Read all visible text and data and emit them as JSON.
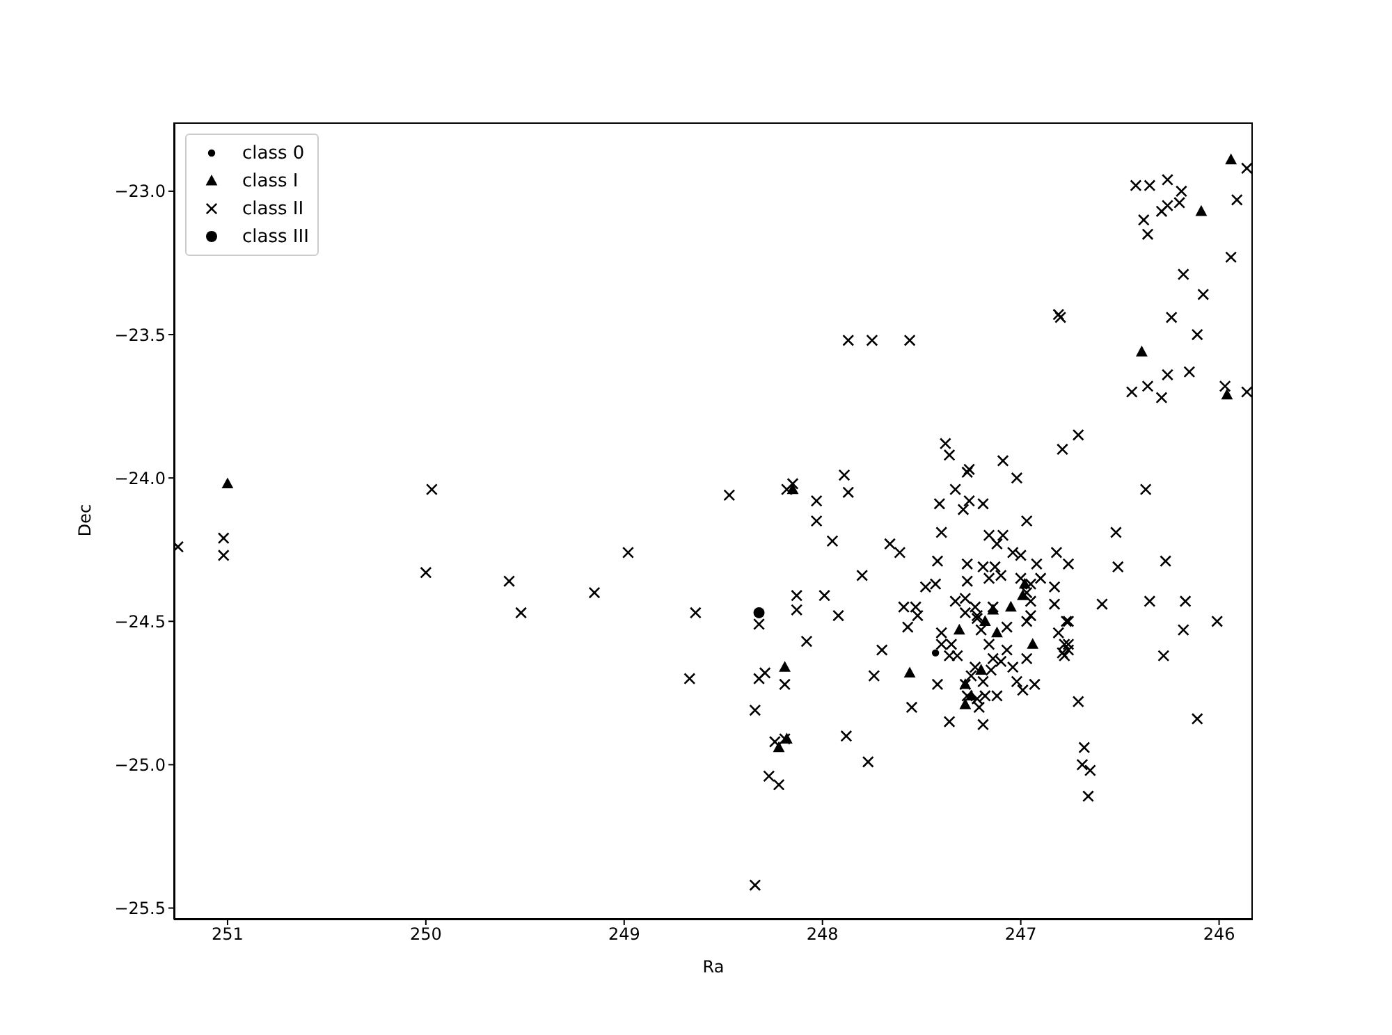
{
  "chart_data": {
    "type": "scatter",
    "xlabel": "Ra",
    "ylabel": "Dec",
    "legend": "top left",
    "grid": false,
    "xlim": [
      251.27,
      245.83
    ],
    "xticks": [
      251,
      250,
      249,
      248,
      247,
      246
    ],
    "ylim": [
      -25.54,
      -22.76
    ],
    "yticks": [
      {
        "value": -25.5,
        "label": "−25.5"
      },
      {
        "value": -25,
        "label": "−25.0"
      },
      {
        "value": -24.5,
        "label": "−24.5"
      },
      {
        "value": -24,
        "label": "−24.0"
      },
      {
        "value": -23.5,
        "label": "−23.5"
      },
      {
        "value": -23,
        "label": "−23.0"
      }
    ],
    "series": [
      {
        "name": "class 0",
        "color": "#000000",
        "marker": "circle",
        "x": [
          247.43
        ],
        "values": [
          -24.61
        ]
      },
      {
        "name": "class I",
        "color": "#000000",
        "marker": "triangle",
        "x": [
          251.0,
          245.94,
          246.09,
          246.39,
          245.96,
          248.19,
          247.56,
          248.15,
          248.22,
          248.18,
          247.31,
          246.94,
          247.28,
          247.12,
          246.98,
          247.18,
          247.05,
          247.28,
          247.25,
          247.2,
          246.99,
          247.14
        ],
        "values": [
          -24.02,
          -22.89,
          -23.07,
          -23.56,
          -23.71,
          -24.66,
          -24.68,
          -24.04,
          -24.94,
          -24.91,
          -24.53,
          -24.58,
          -24.79,
          -24.54,
          -24.37,
          -24.5,
          -24.45,
          -24.72,
          -24.76,
          -24.67,
          -24.41,
          -24.46
        ]
      },
      {
        "name": "class II",
        "color": "#000000",
        "marker": "cross",
        "x": [
          251.25,
          251.02,
          251.02,
          249.97,
          250.0,
          249.58,
          249.52,
          249.15,
          248.98,
          248.64,
          248.67,
          248.47,
          248.15,
          248.18,
          247.89,
          247.87,
          248.03,
          248.03,
          247.95,
          247.66,
          247.61,
          247.8,
          248.13,
          248.13,
          247.99,
          247.92,
          248.32,
          248.08,
          247.7,
          247.74,
          248.29,
          248.32,
          248.19,
          248.34,
          247.88,
          247.77,
          248.27,
          248.22,
          248.24,
          248.19,
          248.34,
          247.87,
          247.75,
          247.56,
          246.81,
          246.8,
          246.42,
          246.35,
          246.26,
          246.19,
          246.2,
          246.26,
          246.29,
          246.38,
          246.36,
          245.86,
          245.91,
          245.94,
          246.18,
          246.08,
          246.24,
          246.11,
          246.26,
          246.15,
          246.36,
          246.44,
          246.29,
          245.97,
          245.86,
          246.71,
          246.79,
          246.37,
          246.52,
          246.51,
          246.27,
          246.76,
          246.59,
          246.35,
          246.17,
          246.18,
          246.01,
          246.77,
          246.76,
          246.79,
          246.28,
          246.71,
          246.11,
          246.68,
          246.69,
          246.65,
          246.66,
          247.38,
          247.36,
          247.26,
          247.27,
          247.09,
          247.02,
          247.33,
          247.41,
          247.29,
          247.26,
          247.19,
          246.97,
          247.4,
          247.16,
          247.09,
          247.12,
          247.04,
          247.0,
          247.42,
          247.27,
          247.19,
          247.13,
          246.92,
          246.82,
          247.27,
          247.48,
          247.43,
          247.16,
          247.1,
          246.9,
          246.83,
          247.33,
          247.28,
          247.59,
          247.53,
          247.52,
          247.57,
          247.28,
          247.22,
          246.95,
          246.83,
          246.76,
          247.4,
          247.2,
          247.07,
          246.97,
          246.81,
          247.4,
          247.35,
          247.16,
          246.78,
          246.76,
          246.78,
          247.36,
          247.32,
          247.14,
          246.97,
          247.04,
          247.23,
          247.42,
          247.02,
          246.99,
          246.93,
          247.12,
          247.55,
          247.36,
          247.21,
          247.19,
          247.28,
          247.25,
          247.19,
          247.18,
          247.27,
          247.22,
          247.15,
          247.1,
          247.07,
          247.23,
          247.22,
          247.14,
          246.97,
          246.95,
          247.0,
          246.95
        ],
        "values": [
          -24.24,
          -24.21,
          -24.27,
          -24.04,
          -24.33,
          -24.36,
          -24.47,
          -24.4,
          -24.26,
          -24.47,
          -24.7,
          -24.06,
          -24.02,
          -24.04,
          -23.99,
          -24.05,
          -24.08,
          -24.15,
          -24.22,
          -24.23,
          -24.26,
          -24.34,
          -24.41,
          -24.46,
          -24.41,
          -24.48,
          -24.51,
          -24.57,
          -24.6,
          -24.69,
          -24.68,
          -24.7,
          -24.72,
          -24.81,
          -24.9,
          -24.99,
          -25.04,
          -25.07,
          -24.92,
          -24.91,
          -25.42,
          -23.52,
          -23.52,
          -23.52,
          -23.43,
          -23.44,
          -22.98,
          -22.98,
          -22.96,
          -23.0,
          -23.04,
          -23.05,
          -23.07,
          -23.1,
          -23.15,
          -22.92,
          -23.03,
          -23.23,
          -23.29,
          -23.36,
          -23.44,
          -23.5,
          -23.64,
          -23.63,
          -23.68,
          -23.7,
          -23.72,
          -23.68,
          -23.7,
          -23.85,
          -23.9,
          -24.04,
          -24.19,
          -24.31,
          -24.29,
          -24.3,
          -24.44,
          -24.43,
          -24.43,
          -24.53,
          -24.5,
          -24.5,
          -24.58,
          -24.61,
          -24.62,
          -24.78,
          -24.84,
          -24.94,
          -25.0,
          -25.02,
          -25.11,
          -23.88,
          -23.92,
          -23.97,
          -23.98,
          -23.94,
          -24.0,
          -24.04,
          -24.09,
          -24.11,
          -24.08,
          -24.09,
          -24.15,
          -24.19,
          -24.2,
          -24.2,
          -24.23,
          -24.26,
          -24.27,
          -24.29,
          -24.3,
          -24.31,
          -24.31,
          -24.3,
          -24.26,
          -24.36,
          -24.38,
          -24.37,
          -24.35,
          -24.34,
          -24.35,
          -24.38,
          -24.43,
          -24.42,
          -24.45,
          -24.45,
          -24.48,
          -24.52,
          -24.47,
          -24.48,
          -24.48,
          -24.44,
          -24.5,
          -24.54,
          -24.53,
          -24.52,
          -24.5,
          -24.54,
          -24.58,
          -24.58,
          -24.58,
          -24.58,
          -24.6,
          -24.62,
          -24.62,
          -24.62,
          -24.63,
          -24.63,
          -24.66,
          -24.66,
          -24.72,
          -24.71,
          -24.74,
          -24.72,
          -24.76,
          -24.8,
          -24.85,
          -24.8,
          -24.86,
          -24.72,
          -24.69,
          -24.71,
          -24.76,
          -24.76,
          -24.77,
          -24.67,
          -24.64,
          -24.6,
          -24.45,
          -24.49,
          -24.45,
          -24.4,
          -24.43,
          -24.35,
          -24.37
        ]
      },
      {
        "name": "class III",
        "color": "#000000",
        "marker": "circle_large",
        "x": [
          248.32
        ],
        "values": [
          -24.47
        ]
      }
    ]
  }
}
